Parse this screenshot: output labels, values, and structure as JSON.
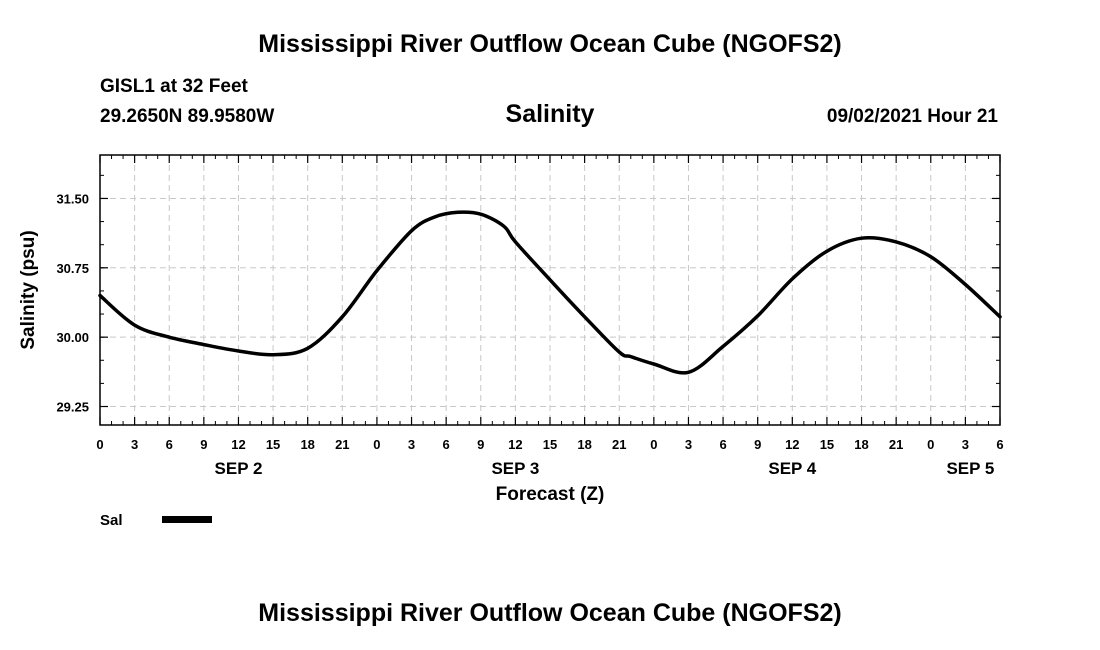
{
  "header": {
    "title": "Mississippi River Outflow Ocean Cube (NGOFS2)",
    "station": "GISL1 at 32 Feet",
    "coords": "29.2650N  89.9580W",
    "timestamp": "09/02/2021 Hour 21"
  },
  "footer": {
    "title": "Mississippi River Outflow Ocean Cube (NGOFS2)"
  },
  "chart_data": {
    "type": "line",
    "title": "Salinity",
    "xlabel": "Forecast (Z)",
    "ylabel": "Salinity (psu)",
    "x_unit": "forecast hour from SEP 2 00Z",
    "xlim": [
      0,
      78
    ],
    "ylim": [
      29.05,
      31.97
    ],
    "yticks": [
      29.25,
      30.0,
      30.75,
      31.5
    ],
    "ytick_labels": [
      "29.25",
      "30.00",
      "30.75",
      "31.50"
    ],
    "xticks": [
      0,
      3,
      6,
      9,
      12,
      15,
      18,
      21,
      24,
      27,
      30,
      33,
      36,
      39,
      42,
      45,
      48,
      51,
      54,
      57,
      60,
      63,
      66,
      69,
      72,
      75,
      78
    ],
    "xtick_labels": [
      "0",
      "3",
      "6",
      "9",
      "12",
      "15",
      "18",
      "21",
      "0",
      "3",
      "6",
      "9",
      "12",
      "15",
      "18",
      "21",
      "0",
      "3",
      "6",
      "9",
      "12",
      "15",
      "18",
      "21",
      "0",
      "3",
      "6"
    ],
    "day_labels": [
      {
        "label": "SEP 2",
        "x": 12
      },
      {
        "label": "SEP 3",
        "x": 36
      },
      {
        "label": "SEP 4",
        "x": 60
      },
      {
        "label": "SEP 5",
        "x": 75
      }
    ],
    "grid": true,
    "line_color": "#000000",
    "series": [
      {
        "name": "Sal",
        "x": [
          0,
          3,
          6,
          9,
          12,
          15,
          18,
          21,
          24,
          27,
          29,
          31,
          33,
          35,
          36,
          39,
          42,
          45,
          46,
          48,
          51,
          54,
          57,
          60,
          63,
          66,
          69,
          72,
          75,
          78
        ],
        "y": [
          30.45,
          30.13,
          30.0,
          29.92,
          29.85,
          29.81,
          29.88,
          30.22,
          30.72,
          31.15,
          31.3,
          31.35,
          31.33,
          31.2,
          31.03,
          30.62,
          30.22,
          29.84,
          29.79,
          29.71,
          29.62,
          29.9,
          30.23,
          30.63,
          30.93,
          31.07,
          31.03,
          30.87,
          30.57,
          30.22
        ]
      }
    ]
  },
  "legend": {
    "entries": [
      {
        "label": "Sal",
        "color": "#000000"
      }
    ]
  }
}
